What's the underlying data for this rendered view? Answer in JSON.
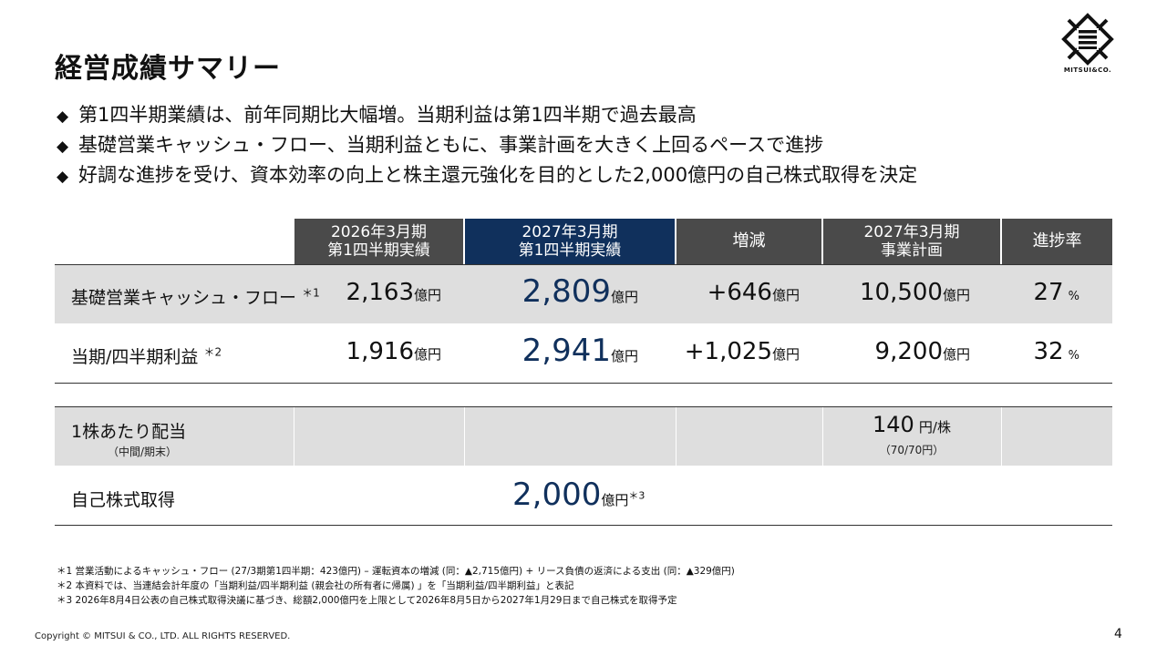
{
  "title": "経営成績サマリー",
  "logo": {
    "text": "MITSUI&CO.",
    "icon": "mitsui-logo-icon"
  },
  "bullets": [
    "第1四半期業績は、前年同期比大幅増。当期利益は第1四半期で過去最高",
    "基礎営業キャッシュ・フロー、当期利益ともに、事業計画を大きく上回るペースで進捗",
    "好調な進捗を受け、資本効率の向上と株主還元強化を目的とした2,000億円の自己株式取得を決定"
  ],
  "bullet_mark": "◆",
  "table": {
    "headers": {
      "prev_line1": "2026年3月期",
      "prev_line2": "第1四半期実績",
      "curr_line1": "2027年3月期",
      "curr_line2": "第1四半期実績",
      "change": "増減",
      "plan_line1": "2027年3月期",
      "plan_line2": "事業計画",
      "progress": "進捗率"
    },
    "rows": {
      "cf": {
        "label": "基礎営業キャッシュ・フロー",
        "note": "＊1",
        "prev": "2,163",
        "curr": "2,809",
        "change": "+646",
        "plan": "10,500",
        "progress": "27"
      },
      "profit": {
        "label": "当期/四半期利益",
        "note": "＊2",
        "prev": "1,916",
        "curr": "2,941",
        "change": "+1,025",
        "plan": "9,200",
        "progress": "32"
      },
      "dividend": {
        "label": "1株あたり配当",
        "sublabel": "（中間/期末）",
        "plan": "140",
        "plan_unit": "円/株",
        "plan_sub": "（70/70円）"
      },
      "buyback": {
        "label": "自己株式取得",
        "curr": "2,000",
        "note": "＊3"
      }
    },
    "unit_oku": "億円",
    "unit_pct": "%"
  },
  "footnotes": [
    "＊1 営業活動によるキャッシュ・フロー (27/3期第1四半期：423億円) – 運転資本の増減 (同：▲2,715億円) + リース負債の返済による支出 (同：▲329億円)",
    "＊2 本資料では、当連結会計年度の「当期利益/四半期利益 (親会社の所有者に帰属) 」を「当期利益/四半期利益」と表記",
    "＊3 2026年8月4日公表の自己株式取得決議に基づき、総額2,000億円を上限として2026年8月5日から2027年1月29日まで自己株式を取得予定"
  ],
  "copyright": "Copyright © MITSUI & CO., LTD. ALL RIGHTS RESERVED.",
  "page_number": "4",
  "colors": {
    "navy": "#10305c",
    "header_grey": "#4a4a4a",
    "row_grey": "#dedede"
  }
}
